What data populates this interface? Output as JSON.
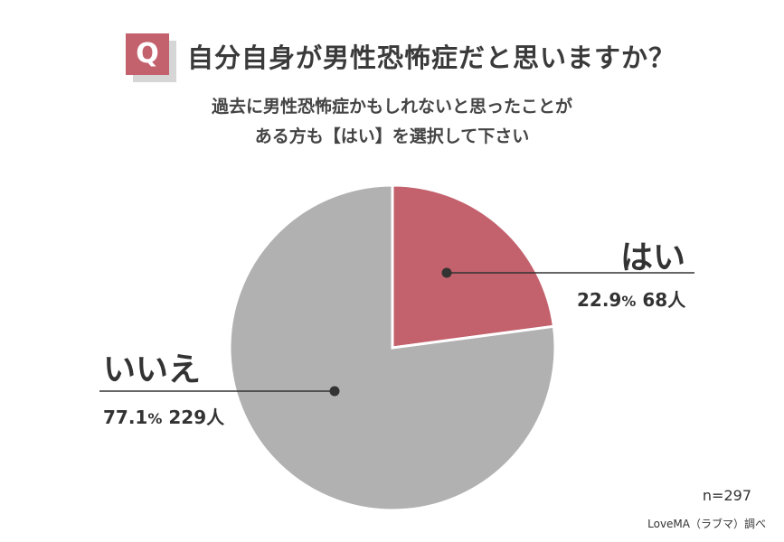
{
  "question_badge": "Q",
  "chart_data": {
    "type": "pie",
    "title": "自分自身が男性恐怖症だと思いますか？",
    "subtitle_lines": [
      "過去に男性恐怖症かもしれないと思ったことが",
      "ある方も【はい】を選択して下さい"
    ],
    "slices": [
      {
        "label": "はい",
        "percent": 22.9,
        "count": 68,
        "percent_text": "22.9",
        "count_text": "68人",
        "color": "#c3616d"
      },
      {
        "label": "いいえ",
        "percent": 77.1,
        "count": 229,
        "percent_text": "77.1",
        "count_text": "229人",
        "color": "#b1b1b1"
      }
    ],
    "percent_symbol": "%",
    "sample_size": "n=297",
    "source": "LoveMA（ラブマ）調べ"
  }
}
